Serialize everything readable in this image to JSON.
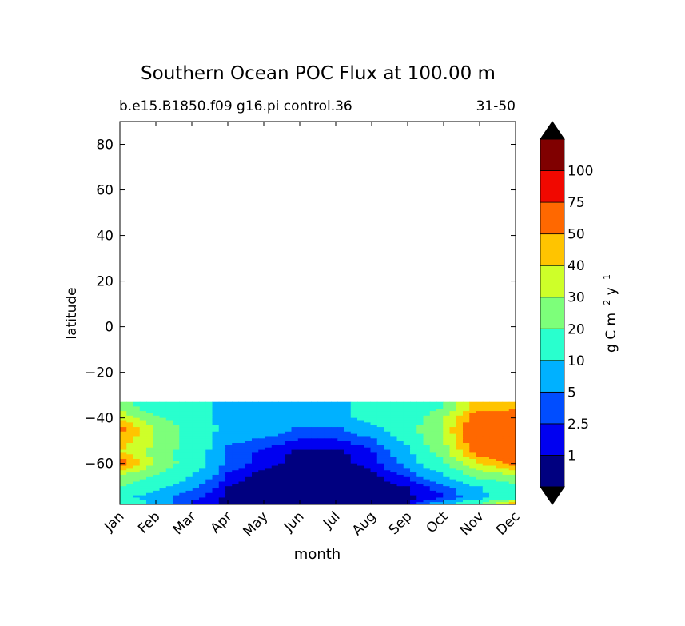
{
  "chart_data": {
    "type": "heatmap",
    "title": "Southern Ocean POC Flux at 100.00 m",
    "subtitle_left": "b.e15.B1850.f09 g16.pi control.36",
    "subtitle_right": "31-50",
    "xlabel": "month",
    "ylabel": "latitude",
    "x_ticks": [
      "Jan",
      "Feb",
      "Mar",
      "Apr",
      "May",
      "Jun",
      "Jul",
      "Aug",
      "Sep",
      "Oct",
      "Nov",
      "Dec"
    ],
    "y_ticks": [
      "80",
      "60",
      "40",
      "20",
      "0",
      "−20",
      "−40",
      "−60"
    ],
    "y_tick_values": [
      80,
      60,
      40,
      20,
      0,
      -20,
      -40,
      -60
    ],
    "ylim": [
      -78,
      90
    ],
    "data_lat_range": [
      -78,
      -33
    ],
    "colorbar": {
      "label": "g C m⁻² y⁻¹",
      "label_parts": [
        "g C m",
        "−2",
        " y",
        "−1"
      ],
      "ticks": [
        "1",
        "2.5",
        "5",
        "10",
        "20",
        "30",
        "40",
        "50",
        "75",
        "100"
      ],
      "levels": [
        1,
        2.5,
        5,
        10,
        20,
        30,
        40,
        50,
        75,
        100
      ],
      "colors": [
        "#000080",
        "#0000f1",
        "#004dff",
        "#00b1ff",
        "#29ffce",
        "#7dff7a",
        "#ceff29",
        "#ffc400",
        "#ff6800",
        "#f10800",
        "#800000"
      ],
      "extend": "both",
      "under_color": "#000000",
      "over_color": "#000000"
    },
    "months_x": [
      0,
      1,
      2,
      3,
      4,
      5,
      6,
      7,
      8,
      9,
      10,
      11
    ],
    "lat_rows": [
      -35,
      -40,
      -45,
      -50,
      -55,
      -60,
      -65,
      -70,
      -75,
      -78
    ],
    "z": [
      [
        25,
        12,
        12,
        8,
        8,
        8,
        8,
        12,
        10,
        20,
        45,
        45
      ],
      [
        38,
        22,
        12,
        8,
        8,
        8,
        8,
        12,
        12,
        30,
        60,
        62
      ],
      [
        55,
        30,
        15,
        8,
        8,
        4,
        4,
        8,
        15,
        32,
        65,
        65
      ],
      [
        45,
        30,
        15,
        6,
        4,
        2,
        2,
        4,
        12,
        30,
        65,
        65
      ],
      [
        40,
        25,
        15,
        4,
        2,
        0.6,
        0.6,
        2,
        8,
        25,
        55,
        60
      ],
      [
        58,
        28,
        14,
        4,
        1.5,
        0.5,
        0.5,
        1.5,
        6,
        18,
        40,
        55
      ],
      [
        30,
        20,
        10,
        2,
        0.5,
        0.4,
        0.4,
        0.6,
        3,
        10,
        25,
        30
      ],
      [
        20,
        12,
        6,
        1,
        0.4,
        0.3,
        0.3,
        0.4,
        1,
        4,
        10,
        18
      ],
      [
        12,
        6,
        3,
        0.6,
        0.3,
        0.3,
        0.3,
        0.3,
        0.6,
        2,
        8,
        15
      ],
      [
        20,
        8,
        2,
        0.4,
        0.3,
        0.3,
        0.3,
        0.3,
        0.5,
        8,
        20,
        50
      ]
    ]
  }
}
